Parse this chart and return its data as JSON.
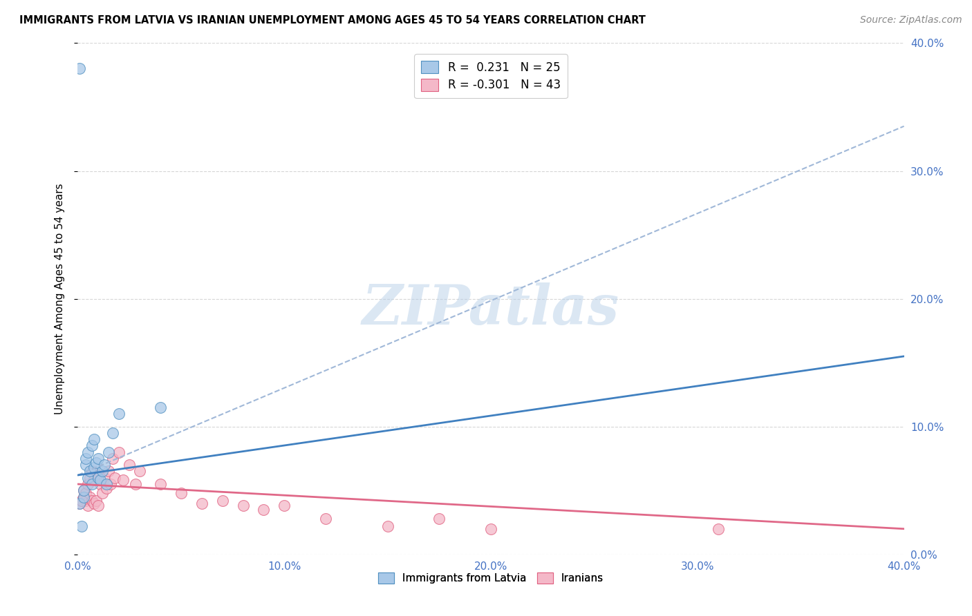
{
  "title": "IMMIGRANTS FROM LATVIA VS IRANIAN UNEMPLOYMENT AMONG AGES 45 TO 54 YEARS CORRELATION CHART",
  "source": "Source: ZipAtlas.com",
  "ylabel": "Unemployment Among Ages 45 to 54 years",
  "x_min": 0.0,
  "x_max": 0.4,
  "y_min": 0.0,
  "y_max": 0.4,
  "x_ticks": [
    0.0,
    0.1,
    0.2,
    0.3,
    0.4
  ],
  "y_ticks": [
    0.0,
    0.1,
    0.2,
    0.3,
    0.4
  ],
  "blue_color": "#a8c8e8",
  "pink_color": "#f4b8c8",
  "blue_edge_color": "#5090c0",
  "pink_edge_color": "#e06080",
  "blue_line_color": "#4080c0",
  "pink_line_color": "#e06888",
  "dashed_line_color": "#a0b8d8",
  "watermark": "ZIPatlas",
  "blue_scatter_x": [
    0.001,
    0.002,
    0.003,
    0.003,
    0.004,
    0.004,
    0.005,
    0.005,
    0.006,
    0.007,
    0.007,
    0.008,
    0.008,
    0.009,
    0.01,
    0.01,
    0.011,
    0.012,
    0.013,
    0.014,
    0.015,
    0.017,
    0.02,
    0.04,
    0.001
  ],
  "blue_scatter_y": [
    0.04,
    0.022,
    0.045,
    0.05,
    0.07,
    0.075,
    0.06,
    0.08,
    0.065,
    0.055,
    0.085,
    0.068,
    0.09,
    0.072,
    0.06,
    0.075,
    0.058,
    0.065,
    0.07,
    0.055,
    0.08,
    0.095,
    0.11,
    0.115,
    0.38
  ],
  "pink_scatter_x": [
    0.001,
    0.002,
    0.003,
    0.003,
    0.004,
    0.004,
    0.005,
    0.005,
    0.006,
    0.006,
    0.007,
    0.007,
    0.008,
    0.008,
    0.009,
    0.01,
    0.01,
    0.011,
    0.012,
    0.013,
    0.014,
    0.015,
    0.016,
    0.017,
    0.018,
    0.02,
    0.022,
    0.025,
    0.028,
    0.03,
    0.04,
    0.05,
    0.06,
    0.07,
    0.08,
    0.09,
    0.1,
    0.12,
    0.15,
    0.175,
    0.2,
    0.31,
    0.002
  ],
  "pink_scatter_y": [
    0.04,
    0.042,
    0.045,
    0.05,
    0.042,
    0.048,
    0.038,
    0.055,
    0.045,
    0.06,
    0.042,
    0.065,
    0.04,
    0.058,
    0.042,
    0.038,
    0.062,
    0.055,
    0.048,
    0.06,
    0.052,
    0.065,
    0.055,
    0.075,
    0.06,
    0.08,
    0.058,
    0.07,
    0.055,
    0.065,
    0.055,
    0.048,
    0.04,
    0.042,
    0.038,
    0.035,
    0.038,
    0.028,
    0.022,
    0.028,
    0.02,
    0.02,
    0.042
  ],
  "blue_line_x0": 0.0,
  "blue_line_y0": 0.062,
  "blue_line_x1": 0.4,
  "blue_line_y1": 0.155,
  "pink_line_x0": 0.0,
  "pink_line_y0": 0.055,
  "pink_line_x1": 0.4,
  "pink_line_y1": 0.02,
  "dash_line_x0": 0.0,
  "dash_line_y0": 0.062,
  "dash_line_x1": 0.4,
  "dash_line_y1": 0.335
}
